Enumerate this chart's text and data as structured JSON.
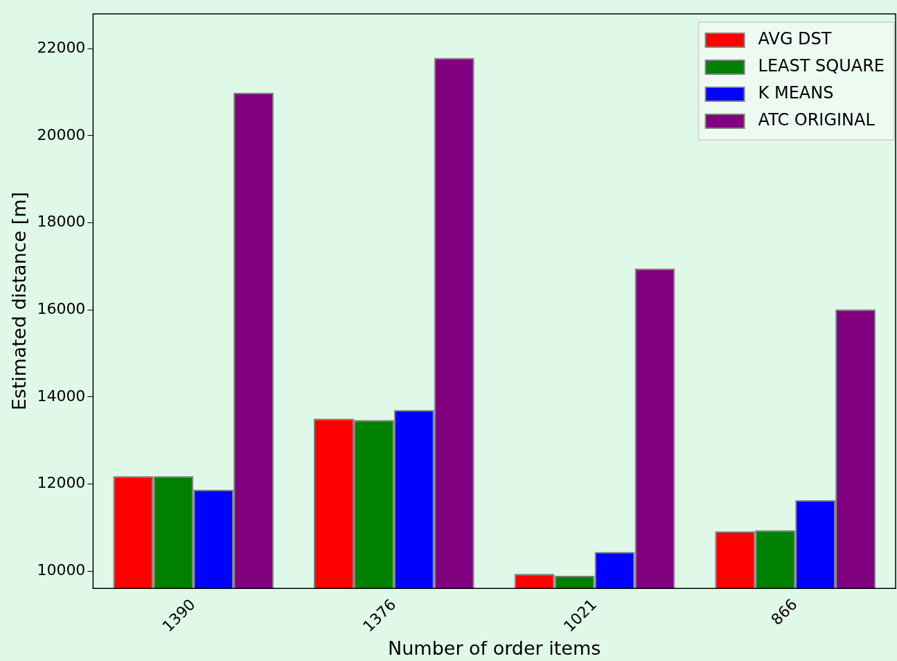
{
  "chart_data": {
    "type": "bar",
    "xlabel": "Number of order items",
    "ylabel": "Estimated distance [m]",
    "categories": [
      "1390",
      "1376",
      "1021",
      "866"
    ],
    "series": [
      {
        "name": "AVG DST",
        "color": "#ff0000",
        "values": [
          12180,
          13500,
          9935,
          10910
        ]
      },
      {
        "name": "LEAST SQUARE",
        "color": "#008000",
        "values": [
          12180,
          13470,
          9890,
          10940
        ]
      },
      {
        "name": "K MEANS",
        "color": "#0000ff",
        "values": [
          11870,
          13700,
          10440,
          11630
        ]
      },
      {
        "name": "ATC ORIGINAL",
        "color": "#800080",
        "values": [
          20990,
          21790,
          16950,
          16010
        ]
      }
    ],
    "ylim": [
      9600,
      22800
    ],
    "yticks": [
      10000,
      12000,
      14000,
      16000,
      18000,
      20000,
      22000
    ],
    "grid": false,
    "legend": "top right"
  }
}
